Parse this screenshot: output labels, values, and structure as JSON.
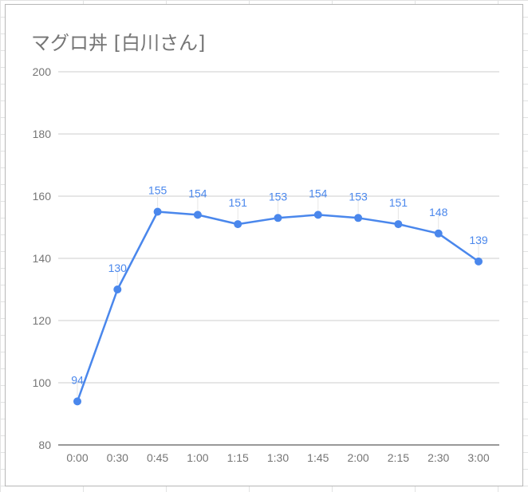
{
  "chart_data": {
    "type": "line",
    "title": "マグロ丼 [白川さん]",
    "categories": [
      "0:00",
      "0:30",
      "0:45",
      "1:00",
      "1:15",
      "1:30",
      "1:45",
      "2:00",
      "2:15",
      "2:30",
      "3:00"
    ],
    "series": [
      {
        "values": [
          94,
          130,
          155,
          154,
          151,
          153,
          154,
          153,
          151,
          148,
          139
        ],
        "color": "#4a87ec"
      }
    ],
    "ylim": [
      80,
      200
    ],
    "yticks": [
      80,
      100,
      120,
      140,
      160,
      180,
      200
    ],
    "grid": true,
    "data_labels": true,
    "xlabel": "",
    "ylabel": ""
  }
}
